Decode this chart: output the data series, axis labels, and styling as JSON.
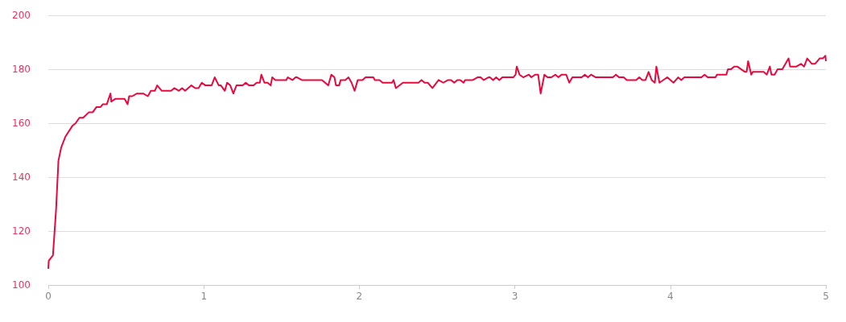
{
  "chart_data": {
    "type": "line",
    "x": [
      0,
      0.003,
      0.005,
      0.03,
      0.05,
      0.065,
      0.083,
      0.11,
      0.155,
      0.176,
      0.2,
      0.224,
      0.26,
      0.285,
      0.31,
      0.336,
      0.35,
      0.376,
      0.4,
      0.405,
      0.43,
      0.49,
      0.51,
      0.52,
      0.54,
      0.57,
      0.61,
      0.64,
      0.66,
      0.685,
      0.7,
      0.73,
      0.79,
      0.81,
      0.84,
      0.86,
      0.88,
      0.92,
      0.945,
      0.966,
      0.987,
      1.01,
      1.05,
      1.07,
      1.096,
      1.11,
      1.135,
      1.15,
      1.17,
      1.19,
      1.21,
      1.25,
      1.27,
      1.29,
      1.32,
      1.34,
      1.36,
      1.37,
      1.39,
      1.41,
      1.43,
      1.44,
      1.46,
      1.53,
      1.54,
      1.57,
      1.59,
      1.6,
      1.63,
      1.76,
      1.8,
      1.82,
      1.84,
      1.85,
      1.87,
      1.88,
      1.91,
      1.93,
      1.95,
      1.97,
      1.99,
      2.02,
      2.04,
      2.09,
      2.1,
      2.13,
      2.15,
      2.21,
      2.22,
      2.235,
      2.28,
      2.38,
      2.4,
      2.42,
      2.44,
      2.47,
      2.51,
      2.54,
      2.57,
      2.59,
      2.61,
      2.63,
      2.65,
      2.67,
      2.68,
      2.73,
      2.76,
      2.78,
      2.8,
      2.83,
      2.84,
      2.86,
      2.88,
      2.9,
      2.92,
      2.99,
      3.005,
      3.012,
      3.03,
      3.054,
      3.09,
      3.106,
      3.13,
      3.15,
      3.166,
      3.19,
      3.21,
      3.235,
      3.26,
      3.28,
      3.3,
      3.33,
      3.35,
      3.37,
      3.43,
      3.45,
      3.47,
      3.49,
      3.52,
      3.63,
      3.65,
      3.67,
      3.7,
      3.72,
      3.78,
      3.8,
      3.82,
      3.84,
      3.86,
      3.88,
      3.9,
      3.91,
      3.93,
      3.98,
      4.02,
      4.05,
      4.07,
      4.09,
      4.2,
      4.22,
      4.24,
      4.29,
      4.3,
      4.36,
      4.37,
      4.39,
      4.41,
      4.43,
      4.48,
      4.49,
      4.5,
      4.52,
      4.53,
      4.6,
      4.62,
      4.64,
      4.65,
      4.67,
      4.69,
      4.72,
      4.76,
      4.77,
      4.81,
      4.84,
      4.86,
      4.88,
      4.91,
      4.93,
      4.96,
      4.98,
      4.997,
      5
    ],
    "series": [
      {
        "color": "#e8083e",
        "values": [
          106,
          109,
          109,
          111,
          128,
          146,
          151,
          155,
          159,
          160,
          162,
          162,
          164,
          164,
          166,
          166,
          167,
          167,
          171,
          168,
          169,
          169,
          167,
          170,
          170,
          171,
          171,
          170,
          172,
          172,
          174,
          172,
          172,
          173,
          172,
          173,
          172,
          174,
          173,
          173,
          175,
          174,
          174,
          177,
          174,
          174,
          172,
          175,
          174,
          171,
          174,
          174,
          175,
          174,
          174,
          175,
          175,
          178,
          175,
          175,
          174,
          177,
          176,
          176,
          177,
          176,
          177,
          177,
          176,
          176,
          174,
          178,
          177,
          174,
          174,
          176,
          176,
          177,
          175,
          172,
          176,
          176,
          177,
          177,
          176,
          176,
          175,
          175,
          176,
          173,
          175,
          175,
          176,
          175,
          175,
          173,
          176,
          175,
          176,
          176,
          175,
          176,
          176,
          175,
          176,
          176,
          177,
          177,
          176,
          177,
          177,
          176,
          177,
          176,
          177,
          177,
          178,
          181,
          178,
          177,
          178,
          177,
          178,
          178,
          171,
          178,
          177,
          177,
          178,
          177,
          178,
          178,
          175,
          177,
          177,
          178,
          177,
          178,
          177,
          177,
          178,
          177,
          177,
          176,
          176,
          177,
          176,
          176,
          179,
          176,
          175,
          181,
          175,
          177,
          175,
          177,
          176,
          177,
          177,
          178,
          177,
          177,
          178,
          178,
          180,
          180,
          181,
          181,
          179,
          179,
          183,
          178,
          179,
          179,
          178,
          181,
          178,
          178,
          180,
          180,
          184,
          181,
          181,
          182,
          181,
          184,
          182,
          182,
          184,
          184,
          185,
          183
        ]
      }
    ],
    "xlim": [
      0,
      5
    ],
    "xticks": [
      0,
      1,
      2,
      3,
      4,
      5
    ],
    "ylim": [
      100,
      200
    ],
    "yticks": [
      100,
      120,
      140,
      160,
      180,
      200
    ],
    "grid": "y",
    "marker": "none",
    "line_style": "solid"
  }
}
